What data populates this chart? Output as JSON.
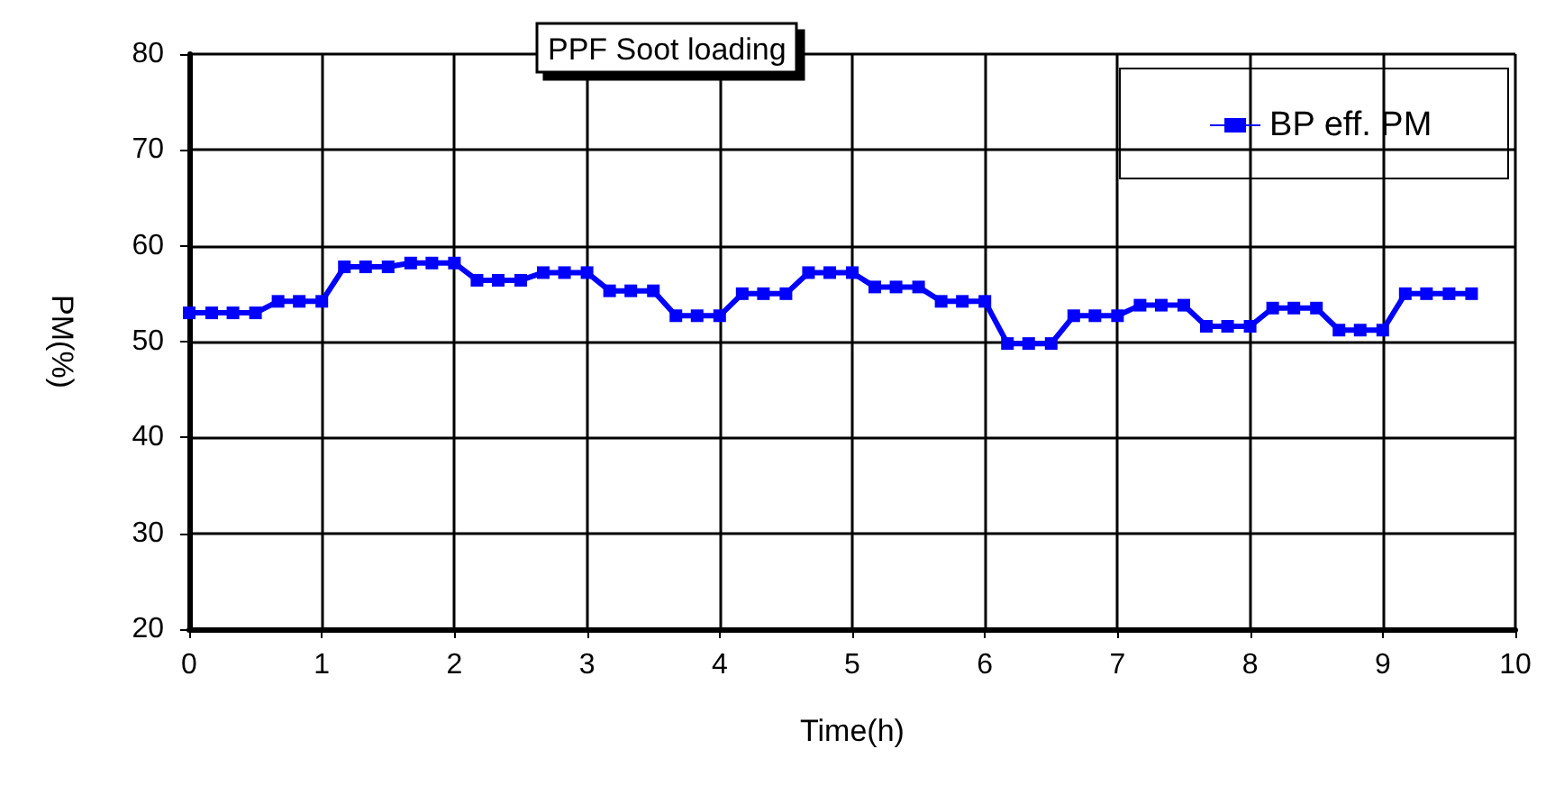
{
  "chart_data": {
    "type": "line",
    "title": "PPF Soot loading",
    "xlabel": "Time(h)",
    "ylabel": "PM(%)",
    "x": [
      0,
      0.17,
      0.33,
      0.5,
      0.67,
      0.83,
      1,
      1.17,
      1.33,
      1.5,
      1.67,
      1.83,
      2,
      2.17,
      2.33,
      2.5,
      2.67,
      2.83,
      3,
      3.17,
      3.33,
      3.5,
      3.67,
      3.83,
      4,
      4.17,
      4.33,
      4.5,
      4.67,
      4.83,
      5,
      5.17,
      5.33,
      5.5,
      5.67,
      5.83,
      6,
      6.17,
      6.33,
      6.5,
      6.67,
      6.83,
      7,
      7.17,
      7.33,
      7.5,
      7.67,
      7.83,
      8,
      8.17,
      8.33,
      8.5,
      8.67,
      8.83,
      9,
      9.17,
      9.33,
      9.5,
      9.67
    ],
    "series": [
      {
        "name": "BP eff. PM",
        "color": "#0000ff",
        "values": [
          53,
          53,
          53,
          53,
          54.2,
          54.2,
          54.2,
          57.8,
          57.8,
          57.8,
          58.2,
          58.2,
          58.2,
          56.4,
          56.4,
          56.4,
          57.2,
          57.2,
          57.2,
          55.3,
          55.3,
          55.3,
          52.7,
          52.7,
          52.7,
          55,
          55,
          55,
          57.2,
          57.2,
          57.2,
          55.7,
          55.7,
          55.7,
          54.2,
          54.2,
          54.2,
          49.8,
          49.8,
          49.8,
          52.7,
          52.7,
          52.7,
          53.8,
          53.8,
          53.8,
          51.6,
          51.6,
          51.6,
          53.5,
          53.5,
          53.5,
          51.2,
          51.2,
          51.2,
          55,
          55,
          55,
          55
        ]
      }
    ],
    "xlim": [
      0,
      10
    ],
    "xticks": [
      0,
      1,
      2,
      3,
      4,
      5,
      6,
      7,
      8,
      9,
      10
    ],
    "ylim": [
      20,
      80
    ],
    "yticks": [
      20,
      30,
      40,
      50,
      60,
      70,
      80
    ],
    "grid": true,
    "legend": "top right",
    "marker": "square",
    "line_style": "solid"
  }
}
